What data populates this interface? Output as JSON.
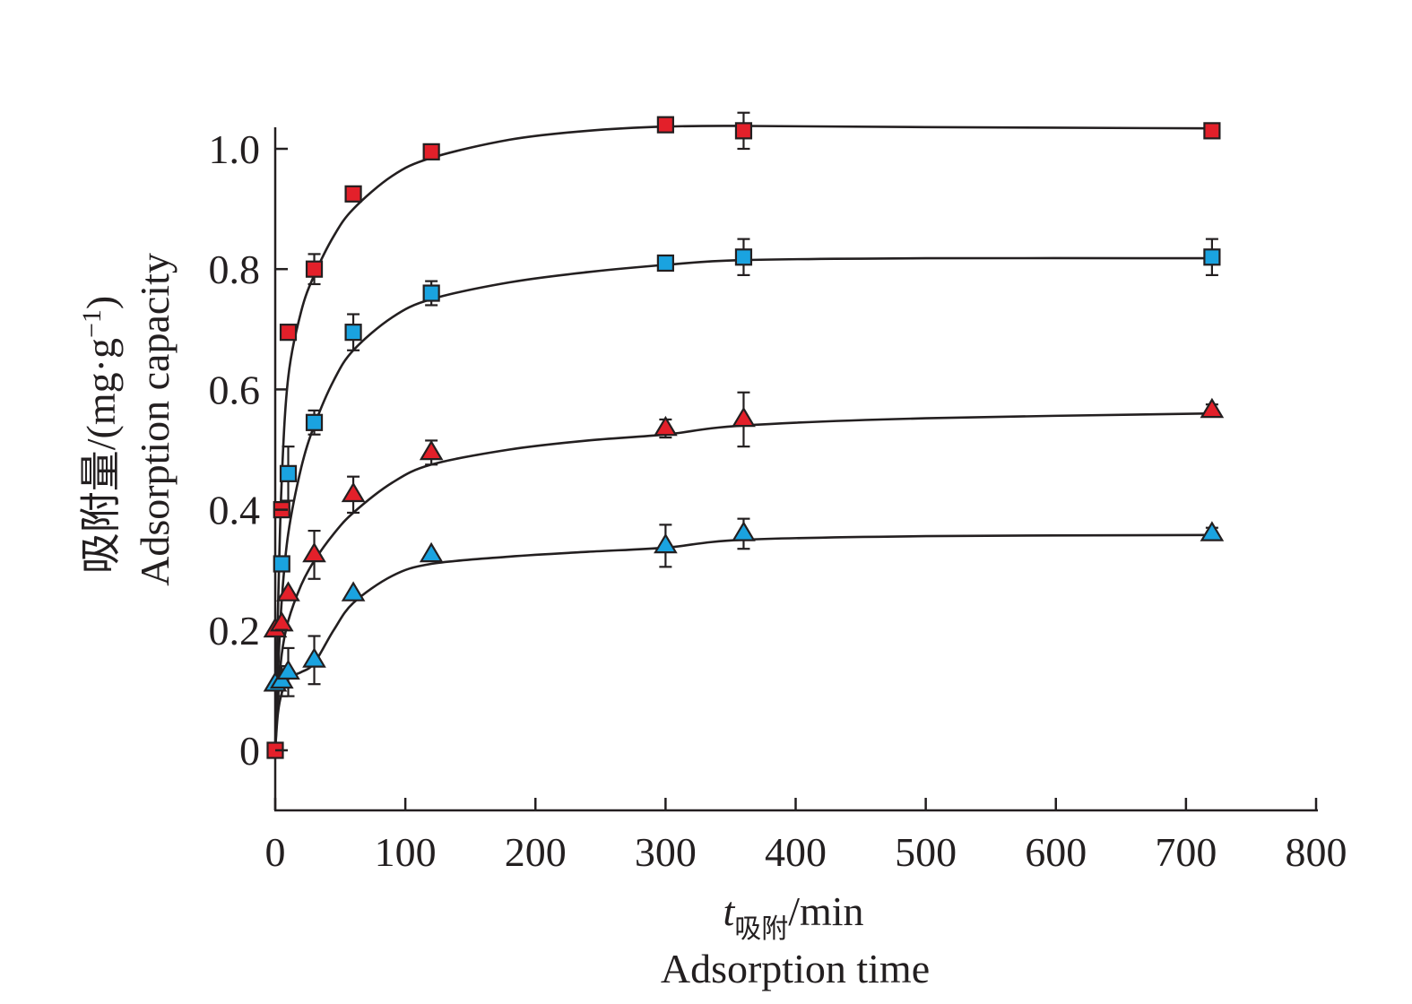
{
  "chart_data": {
    "type": "scatter",
    "title": "",
    "xlabel_var": "t",
    "xlabel_sub": "吸附",
    "xlabel_unit": "/min",
    "xlabel_en": "Adsorption time",
    "ylabel_cn": "吸附量/(mg·g",
    "ylabel_sup": "−1",
    "ylabel_close": ")",
    "ylabel_en": "Adsorption capacity",
    "xlim": [
      0,
      800
    ],
    "ylim": [
      -0.1,
      1.04
    ],
    "x_ticks": [
      0,
      100,
      200,
      300,
      400,
      500,
      600,
      700,
      800
    ],
    "x_tick_labels": [
      "0",
      "100",
      "200",
      "300",
      "400",
      "500",
      "600",
      "700",
      "800"
    ],
    "y_ticks": [
      0,
      0.2,
      0.4,
      0.6,
      0.8,
      1.0
    ],
    "y_tick_labels": [
      "0",
      "0.2",
      "0.4",
      "0.6",
      "0.8",
      "1.0"
    ],
    "grid": false,
    "legend": "none",
    "series": [
      {
        "marker": "square",
        "color": "#e3202a",
        "x": [
          0,
          5,
          10,
          30,
          60,
          120,
          300,
          360,
          720
        ],
        "y": [
          0.0,
          0.4,
          0.695,
          0.8,
          0.925,
          0.995,
          1.04,
          1.03,
          1.03
        ],
        "err": [
          0,
          0,
          0,
          0.025,
          0,
          0,
          0,
          0.03,
          0
        ],
        "fit": [
          [
            0,
            0
          ],
          [
            2,
            0.22
          ],
          [
            5,
            0.45
          ],
          [
            10,
            0.62
          ],
          [
            20,
            0.73
          ],
          [
            30,
            0.79
          ],
          [
            45,
            0.855
          ],
          [
            60,
            0.9
          ],
          [
            90,
            0.955
          ],
          [
            120,
            0.985
          ],
          [
            180,
            1.015
          ],
          [
            240,
            1.03
          ],
          [
            300,
            1.037
          ],
          [
            360,
            1.038
          ],
          [
            500,
            1.036
          ],
          [
            720,
            1.034
          ]
        ]
      },
      {
        "marker": "square",
        "color": "#1aa3e0",
        "x": [
          5,
          10,
          30,
          60,
          120,
          300,
          360,
          720
        ],
        "y": [
          0.31,
          0.46,
          0.545,
          0.695,
          0.76,
          0.81,
          0.82,
          0.82
        ],
        "err": [
          0,
          0.045,
          0.02,
          0.03,
          0.02,
          0,
          0.03,
          0.03
        ],
        "fit": [
          [
            0,
            0
          ],
          [
            2,
            0.12
          ],
          [
            5,
            0.25
          ],
          [
            10,
            0.36
          ],
          [
            20,
            0.47
          ],
          [
            30,
            0.54
          ],
          [
            45,
            0.615
          ],
          [
            60,
            0.665
          ],
          [
            90,
            0.72
          ],
          [
            120,
            0.75
          ],
          [
            180,
            0.778
          ],
          [
            240,
            0.795
          ],
          [
            300,
            0.807
          ],
          [
            360,
            0.815
          ],
          [
            500,
            0.818
          ],
          [
            720,
            0.818
          ]
        ]
      },
      {
        "marker": "triangle",
        "color": "#e3202a",
        "x": [
          0,
          5,
          10,
          30,
          60,
          120,
          300,
          360,
          720
        ],
        "y": [
          0.2,
          0.21,
          0.26,
          0.325,
          0.425,
          0.495,
          0.535,
          0.55,
          0.565
        ],
        "err": [
          0,
          0,
          0,
          0.04,
          0.03,
          0.02,
          0.015,
          0.045,
          0.01
        ],
        "fit": [
          [
            0,
            0
          ],
          [
            2,
            0.08
          ],
          [
            5,
            0.16
          ],
          [
            10,
            0.215
          ],
          [
            20,
            0.275
          ],
          [
            30,
            0.315
          ],
          [
            45,
            0.36
          ],
          [
            60,
            0.395
          ],
          [
            90,
            0.445
          ],
          [
            120,
            0.475
          ],
          [
            180,
            0.5
          ],
          [
            240,
            0.515
          ],
          [
            300,
            0.525
          ],
          [
            360,
            0.54
          ],
          [
            500,
            0.552
          ],
          [
            720,
            0.56
          ]
        ]
      },
      {
        "marker": "triangle",
        "color": "#1aa3e0",
        "x": [
          0,
          5,
          10,
          30,
          60,
          120,
          300,
          360,
          720
        ],
        "y": [
          0.11,
          0.115,
          0.13,
          0.15,
          0.26,
          0.325,
          0.34,
          0.36,
          0.36
        ],
        "err": [
          0,
          0.025,
          0.04,
          0.04,
          0,
          0,
          0.035,
          0.025,
          0.01
        ],
        "fit": [
          [
            0,
            0
          ],
          [
            2,
            0.06
          ],
          [
            5,
            0.095
          ],
          [
            10,
            0.12
          ],
          [
            20,
            0.13
          ],
          [
            30,
            0.145
          ],
          [
            45,
            0.2
          ],
          [
            60,
            0.245
          ],
          [
            90,
            0.29
          ],
          [
            120,
            0.31
          ],
          [
            180,
            0.322
          ],
          [
            240,
            0.33
          ],
          [
            300,
            0.337
          ],
          [
            360,
            0.35
          ],
          [
            500,
            0.356
          ],
          [
            720,
            0.358
          ]
        ]
      }
    ]
  }
}
